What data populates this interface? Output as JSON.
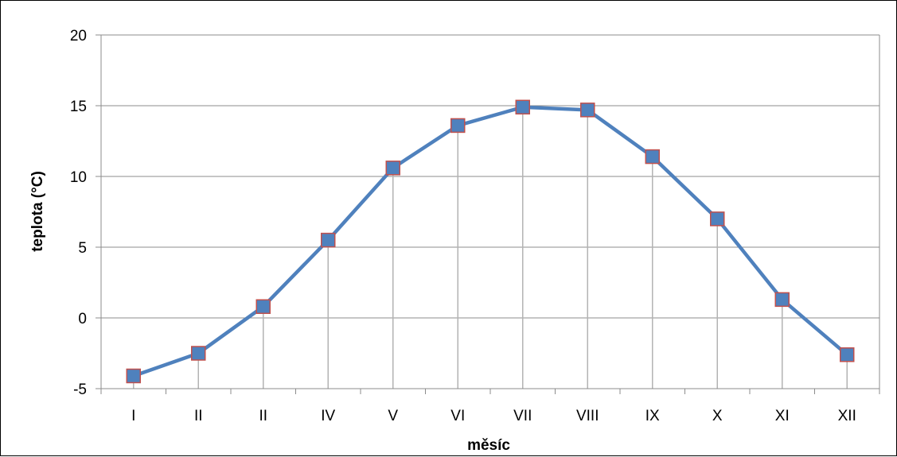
{
  "chart_data": {
    "type": "line",
    "categories": [
      "I",
      "II",
      "II",
      "IV",
      "V",
      "VI",
      "VII",
      "VIII",
      "IX",
      "X",
      "XI",
      "XII"
    ],
    "series": [
      {
        "values": [
          -4.1,
          -2.5,
          0.8,
          5.5,
          10.6,
          13.6,
          14.9,
          14.7,
          11.4,
          7.0,
          1.3,
          -2.6
        ],
        "color": "#4F81BD",
        "marker_color": "#4F81BD",
        "marker_edge_color": "#C0504D"
      }
    ],
    "xlabel": "měsíc",
    "ylabel": "teplota (°C)",
    "ylim": [
      -5,
      20
    ],
    "yticks": [
      -5,
      0,
      5,
      10,
      15,
      20
    ],
    "grid": true,
    "drop_lines": true
  }
}
